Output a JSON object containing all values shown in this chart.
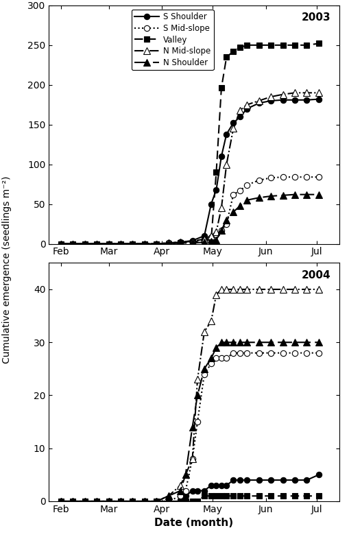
{
  "year2003": {
    "s_shoulder": {
      "x": [
        32,
        39,
        46,
        53,
        60,
        67,
        74,
        81,
        88,
        95,
        102,
        109,
        116,
        120,
        123,
        126,
        129,
        133,
        137,
        141,
        148,
        155,
        162,
        169,
        176,
        183
      ],
      "y": [
        0,
        0,
        0,
        0,
        0,
        0,
        0,
        0,
        0,
        1,
        2,
        4,
        10,
        50,
        68,
        110,
        138,
        152,
        160,
        170,
        177,
        180,
        181,
        181,
        181,
        182
      ]
    },
    "s_midslope": {
      "x": [
        32,
        39,
        46,
        53,
        60,
        67,
        74,
        81,
        88,
        95,
        102,
        109,
        116,
        120,
        123,
        126,
        129,
        133,
        137,
        141,
        148,
        155,
        162,
        169,
        176,
        183
      ],
      "y": [
        0,
        0,
        0,
        0,
        0,
        0,
        0,
        0,
        0,
        1,
        2,
        3,
        5,
        8,
        12,
        17,
        25,
        62,
        67,
        74,
        80,
        83,
        84,
        84,
        84,
        84
      ]
    },
    "valley": {
      "x": [
        32,
        39,
        46,
        53,
        60,
        67,
        74,
        81,
        88,
        95,
        102,
        109,
        116,
        120,
        123,
        126,
        129,
        133,
        137,
        141,
        148,
        155,
        162,
        169,
        176,
        183
      ],
      "y": [
        0,
        0,
        0,
        0,
        0,
        0,
        0,
        0,
        0,
        0,
        1,
        2,
        5,
        5,
        90,
        196,
        235,
        242,
        247,
        250,
        250,
        250,
        250,
        250,
        250,
        252
      ]
    },
    "n_midslope": {
      "x": [
        32,
        39,
        46,
        53,
        60,
        67,
        74,
        81,
        88,
        95,
        102,
        109,
        116,
        120,
        123,
        126,
        129,
        133,
        137,
        141,
        148,
        155,
        162,
        169,
        176,
        183
      ],
      "y": [
        0,
        0,
        0,
        0,
        0,
        0,
        0,
        0,
        0,
        1,
        2,
        3,
        6,
        10,
        15,
        45,
        100,
        145,
        168,
        175,
        180,
        185,
        188,
        190,
        190,
        190
      ]
    },
    "n_shoulder": {
      "x": [
        32,
        39,
        46,
        53,
        60,
        67,
        74,
        81,
        88,
        95,
        102,
        109,
        116,
        120,
        123,
        126,
        129,
        133,
        137,
        141,
        148,
        155,
        162,
        169,
        176,
        183
      ],
      "y": [
        0,
        0,
        0,
        0,
        0,
        0,
        0,
        0,
        0,
        0,
        1,
        1,
        2,
        3,
        5,
        17,
        30,
        40,
        48,
        55,
        58,
        60,
        61,
        62,
        62,
        62
      ]
    }
  },
  "year2004": {
    "s_shoulder": {
      "x": [
        32,
        39,
        46,
        53,
        60,
        67,
        74,
        81,
        88,
        95,
        102,
        105,
        109,
        112,
        116,
        120,
        123,
        126,
        129,
        133,
        137,
        141,
        148,
        155,
        162,
        169,
        176,
        183
      ],
      "y": [
        0,
        0,
        0,
        0,
        0,
        0,
        0,
        0,
        0,
        0,
        0,
        1,
        2,
        2,
        2,
        3,
        3,
        3,
        3,
        4,
        4,
        4,
        4,
        4,
        4,
        4,
        4,
        5
      ]
    },
    "s_midslope": {
      "x": [
        32,
        39,
        46,
        53,
        60,
        67,
        74,
        81,
        88,
        95,
        102,
        105,
        109,
        112,
        116,
        120,
        123,
        126,
        129,
        133,
        137,
        141,
        148,
        155,
        162,
        169,
        176,
        183
      ],
      "y": [
        0,
        0,
        0,
        0,
        0,
        0,
        0,
        0,
        0,
        0,
        1,
        2,
        8,
        15,
        24,
        26,
        27,
        27,
        27,
        28,
        28,
        28,
        28,
        28,
        28,
        28,
        28,
        28
      ]
    },
    "valley": {
      "x": [
        32,
        39,
        46,
        53,
        60,
        67,
        74,
        81,
        88,
        95,
        102,
        105,
        109,
        112,
        116,
        120,
        123,
        126,
        129,
        133,
        137,
        141,
        148,
        155,
        162,
        169,
        176,
        183
      ],
      "y": [
        0,
        0,
        0,
        0,
        0,
        0,
        0,
        0,
        0,
        0,
        0,
        0,
        0,
        0,
        1,
        1,
        1,
        1,
        1,
        1,
        1,
        1,
        1,
        1,
        1,
        1,
        1,
        1
      ]
    },
    "n_midslope": {
      "x": [
        32,
        39,
        46,
        53,
        60,
        67,
        74,
        81,
        88,
        95,
        102,
        105,
        109,
        112,
        116,
        120,
        123,
        126,
        129,
        133,
        137,
        141,
        148,
        155,
        162,
        169,
        176,
        183
      ],
      "y": [
        0,
        0,
        0,
        0,
        0,
        0,
        0,
        0,
        0,
        1,
        3,
        5,
        8,
        23,
        32,
        34,
        39,
        40,
        40,
        40,
        40,
        40,
        40,
        40,
        40,
        40,
        40,
        40
      ]
    },
    "n_shoulder": {
      "x": [
        32,
        39,
        46,
        53,
        60,
        67,
        74,
        81,
        88,
        95,
        102,
        105,
        109,
        112,
        116,
        120,
        123,
        126,
        129,
        133,
        137,
        141,
        148,
        155,
        162,
        169,
        176,
        183
      ],
      "y": [
        0,
        0,
        0,
        0,
        0,
        0,
        0,
        0,
        0,
        1,
        2,
        5,
        14,
        20,
        25,
        27,
        29,
        30,
        30,
        30,
        30,
        30,
        30,
        30,
        30,
        30,
        30,
        30
      ]
    }
  },
  "xtick_doys": [
    32,
    60,
    91,
    121,
    152,
    182
  ],
  "date_labels": [
    "Feb",
    "Mar",
    "Apr",
    "May",
    "Jun",
    "Jul"
  ],
  "ylabel": "Cumulative emergence (seedlings m⁻²)",
  "xlabel": "Date (month)",
  "legend_labels": [
    "S Shoulder",
    "S Mid-slope",
    "Valley",
    "N Mid-slope",
    "N Shoulder"
  ],
  "ylim2003": [
    0,
    300
  ],
  "ylim2004": [
    0,
    45
  ],
  "yticks2003": [
    0,
    50,
    100,
    150,
    200,
    250,
    300
  ],
  "yticks2004": [
    0,
    10,
    20,
    30,
    40
  ],
  "xlim": [
    25,
    195
  ]
}
